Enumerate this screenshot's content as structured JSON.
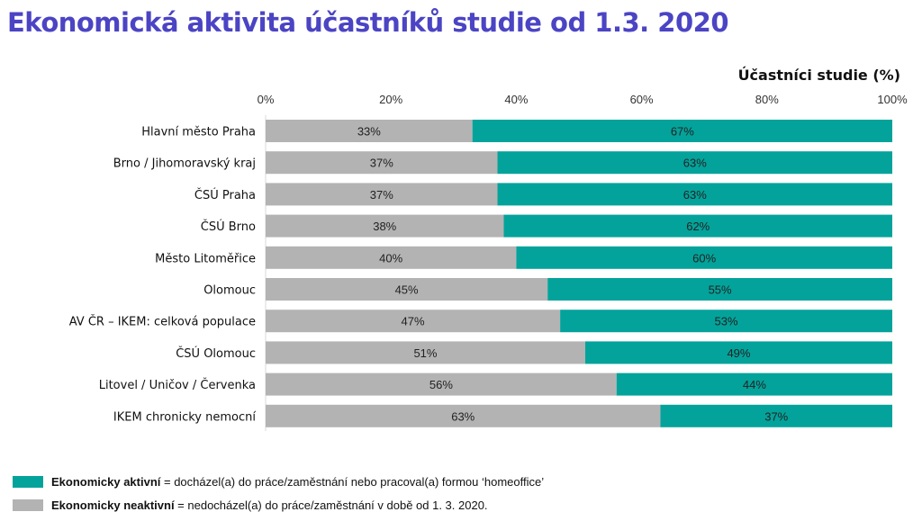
{
  "page": {
    "title": "Ekonomická aktivita účastníků studie od 1.3. 2020"
  },
  "chart_data": {
    "type": "bar",
    "orientation": "horizontal",
    "stacked": true,
    "xlabel": "Účastníci studie (%)",
    "xlim": [
      0,
      100
    ],
    "x_ticks": [
      "0%",
      "20%",
      "40%",
      "60%",
      "80%",
      "100%"
    ],
    "grid": false,
    "categories": [
      "Hlavní město Praha",
      "Brno / Jihomoravský kraj",
      "ČSÚ Praha",
      "ČSÚ Brno",
      "Město Litoměřice",
      "Olomouc",
      "AV ČR – IKEM: celková populace",
      "ČSÚ Olomouc",
      "Litovel / Uničov / Červenka",
      "IKEM chronicky nemocní"
    ],
    "series": [
      {
        "key": "inactive",
        "color": "#b3b3b3",
        "values": [
          33,
          37,
          37,
          38,
          40,
          45,
          47,
          51,
          56,
          63
        ],
        "labels": [
          "33%",
          "37%",
          "37%",
          "38%",
          "40%",
          "45%",
          "47%",
          "51%",
          "56%",
          "63%"
        ]
      },
      {
        "key": "active",
        "color": "#03a39b",
        "values": [
          67,
          63,
          63,
          62,
          60,
          55,
          53,
          49,
          44,
          37
        ],
        "labels": [
          "67%",
          "63%",
          "63%",
          "62%",
          "60%",
          "55%",
          "53%",
          "49%",
          "44%",
          "37%"
        ]
      }
    ]
  },
  "legend": [
    {
      "key": "active",
      "color": "#03a39b",
      "label_bold": "Ekonomicky aktivní",
      "label_rest": " = docházel(a) do práce/zaměstnání nebo pracoval(a) formou ‘homeoffice’"
    },
    {
      "key": "inactive",
      "color": "#b3b3b3",
      "label_bold": "Ekonomicky neaktivní",
      "label_rest": " = nedocházel(a) do práce/zaměstnání v době od 1. 3. 2020."
    }
  ]
}
